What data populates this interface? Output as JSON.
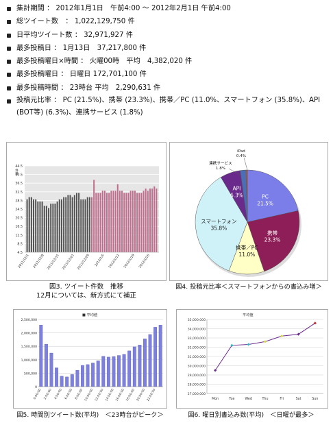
{
  "stats": [
    "集計期間 ： 2012年1月1日　午前4:00 ～ 2012年2月1日 午前4:00",
    "総ツイート数　： 1,022,129,750 件",
    "日平均ツイート数 ： 32,971,927 件",
    "最多投稿日 ： 1月13日　37,217,800 件",
    "最多投稿曜日×時間 ： 火曜00時　平均　4,382,020 件",
    "最多投稿曜日 ： 日曜日 172,701,100 件",
    "最多投稿時間 ： 23時台 平均　2,290,631 件",
    "投稿元比率 ： PC (21.5%)、携帯 (23.3%)、携帯／PC (11.0%、スマートフォン (35.8%)、API (BOT等) (6.3%)、連携サービス (1.8%)"
  ],
  "captions": {
    "fig3_line1": "図3. ツイート件数　推移",
    "fig3_line2": "12月については、新方式にて補正",
    "fig4": "図4. 投稿元比率＜スマートフォンからの書込み増＞",
    "fig5": "図5. 時間別ツイート数(平均)　＜23時台がピーク＞",
    "fig6": "図6. 曜日別書込み数(平均)　＜日曜が最多＞"
  },
  "chart_data": [
    {
      "type": "bar",
      "title": "",
      "ylabel": "件数",
      "ylim": [
        4.5,
        44.5
      ],
      "yticks": [
        "44.5",
        "40.5",
        "36.5",
        "32.5",
        "28.5",
        "24.5",
        "20.5",
        "16.5",
        "12.5",
        "8.5",
        "4.5"
      ],
      "xticks": [
        "2011/12/1",
        "2011/12/8",
        "2011/12/15",
        "2011/12/22",
        "2011/12/29",
        "2012/1/5",
        "2012/1/12",
        "2012/1/19",
        "2012/1/26"
      ],
      "colors": {
        "december": "#555555",
        "january": "#c06c8c"
      },
      "series": [
        {
          "values": [
            29,
            30,
            30,
            29,
            29,
            28,
            28,
            28,
            26,
            26,
            25,
            27,
            27,
            27,
            28,
            29,
            29,
            30,
            30,
            31,
            31,
            30,
            31,
            32,
            32,
            29,
            29,
            29,
            30,
            30
          ]
        },
        {
          "values": [
            30,
            38,
            32,
            32,
            32,
            33,
            33,
            32,
            32,
            33,
            33,
            33,
            36,
            33,
            33,
            32,
            32,
            32,
            33,
            33,
            33,
            32,
            32,
            32,
            33,
            34,
            33,
            34,
            34,
            35,
            34
          ]
        }
      ]
    },
    {
      "type": "pie",
      "categories": [
        "PC",
        "携帯",
        "携帯／PC",
        "スマートフォン",
        "API",
        "連携サービス",
        "iPad"
      ],
      "values": [
        21.5,
        23.3,
        11.0,
        35.8,
        6.3,
        1.8,
        0.4
      ],
      "labels": [
        "21.5%",
        "23.3%",
        "11.0%",
        "35.8%",
        "6.3%",
        "1.8%",
        "0.4%"
      ],
      "colors": [
        "#7b7ee8",
        "#8e1e57",
        "#ffffc6",
        "#cff2f8",
        "#6a2a8c",
        "#4a6fb8",
        "#cc5a2e"
      ]
    },
    {
      "type": "bar",
      "legend": "平均値",
      "ylim": [
        0,
        2500000
      ],
      "yticks": [
        "2,500,000",
        "2,000,000",
        "1,500,000",
        "1,000,000",
        "500,000",
        "0"
      ],
      "xticks": [
        "0:00:00",
        "2:00:00",
        "4:00:00",
        "6:00:00",
        "8:00:00",
        "10:00:00",
        "12:00:00",
        "14:00:00",
        "16:00:00",
        "18:00:00",
        "20:00:00",
        "22:00:00"
      ],
      "values": [
        2290000,
        1580000,
        1250000,
        700000,
        390000,
        360000,
        450000,
        610000,
        790000,
        820000,
        880000,
        960000,
        1130000,
        1100000,
        1120000,
        1160000,
        1200000,
        1330000,
        1480000,
        1550000,
        1780000,
        1940000,
        2210000,
        2290000
      ],
      "color": "#7d80dc"
    },
    {
      "type": "line",
      "legend": "平均値",
      "x": [
        "Mon",
        "Tue",
        "Wed",
        "Thu",
        "Fri",
        "Sat",
        "Sun"
      ],
      "y": [
        29500000,
        32200000,
        32300000,
        32600000,
        33200000,
        33400000,
        34600000
      ],
      "ylim": [
        27000000,
        35000000
      ],
      "yticks": [
        "35,000,000",
        "34,000,000",
        "33,000,000",
        "32,000,000",
        "31,000,000",
        "30,000,000",
        "29,000,000",
        "28,000,000",
        "27,000,000"
      ],
      "color": "#6a2a8c"
    }
  ]
}
